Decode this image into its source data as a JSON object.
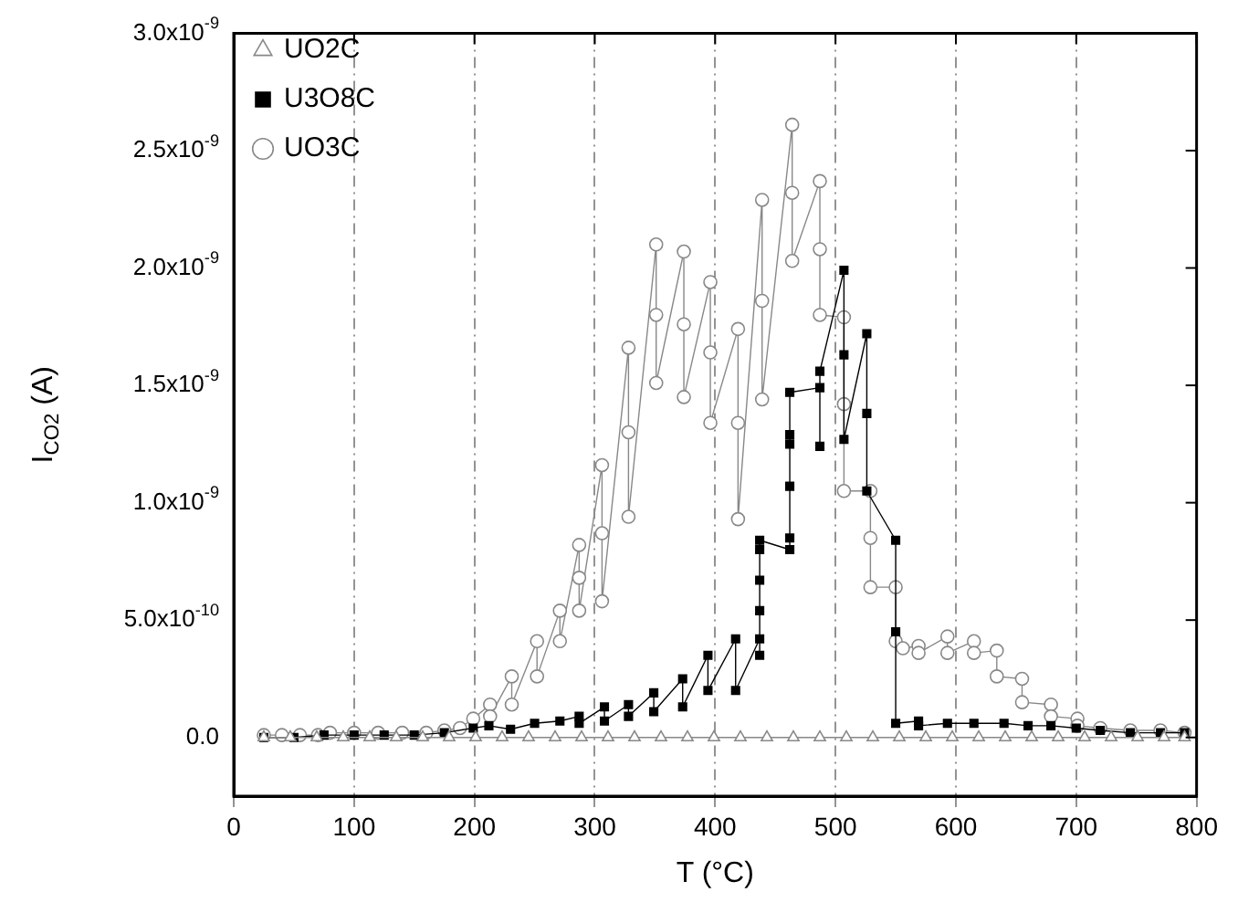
{
  "chart_data": {
    "type": "line",
    "xlabel": "T (°C)",
    "ylabel": "I$_{CO2}$ (A)",
    "xlim": [
      0,
      800
    ],
    "xticks": [
      0,
      100,
      200,
      300,
      400,
      500,
      600,
      700,
      800
    ],
    "ylim": [
      -2.5e-10,
      3e-09
    ],
    "yticks": [
      {
        "value": 0,
        "label": "0.0"
      },
      {
        "value": 5e-10,
        "label": "5.0x10$^{-10}$"
      },
      {
        "value": 1e-09,
        "label": "1.0x10$^{-9}$"
      },
      {
        "value": 1.5e-09,
        "label": "1.5x10$^{-9}$"
      },
      {
        "value": 2e-09,
        "label": "2.0x10$^{-9}$"
      },
      {
        "value": 2.5e-09,
        "label": "2.5x10$^{-9}$"
      },
      {
        "value": 3e-09,
        "label": "3.0x10$^{-9}$"
      }
    ],
    "grid": "x",
    "legend": "top left",
    "series": [
      {
        "name": "UO2C",
        "color": "#888888",
        "marker": "triangle",
        "x": [
          25,
          47,
          69,
          91,
          113,
          135,
          157,
          179,
          201,
          223,
          245,
          267,
          289,
          311,
          333,
          355,
          377,
          399,
          421,
          443,
          465,
          487,
          509,
          531,
          553,
          575,
          597,
          619,
          641,
          663,
          685,
          707,
          729,
          751,
          773,
          790
        ],
        "values": [
          0,
          0,
          0,
          0,
          0,
          0,
          0,
          0,
          0,
          0,
          0,
          0,
          0,
          0,
          0,
          0,
          0,
          0,
          0,
          0,
          0,
          0,
          0,
          0,
          0,
          0,
          0,
          0,
          0,
          0,
          0,
          0,
          0,
          0,
          0,
          0
        ]
      },
      {
        "name": "U3O8C",
        "color": "#000000",
        "marker": "square",
        "x": [
          25,
          50,
          75,
          100,
          125,
          150,
          175,
          199,
          212,
          230,
          250,
          271,
          287,
          287,
          308,
          308,
          328,
          328,
          349,
          349,
          373,
          373,
          394,
          394,
          417,
          417,
          437,
          437,
          437,
          437,
          437,
          437,
          462,
          462,
          462,
          462,
          462,
          462,
          487,
          487,
          487,
          507,
          507,
          507,
          526,
          526,
          526,
          550,
          550,
          550,
          569,
          569,
          593,
          615,
          640,
          660,
          679,
          700,
          720,
          745,
          770,
          790
        ],
        "values": [
          0,
          0,
          1e-11,
          1e-11,
          1e-11,
          1e-11,
          2e-11,
          4e-11,
          5e-11,
          3.5e-11,
          6e-11,
          7e-11,
          9e-11,
          6e-11,
          1.3e-10,
          7e-11,
          1.4e-10,
          9e-11,
          1.9e-10,
          1.1e-10,
          2.5e-10,
          1.3e-10,
          3.5e-10,
          2e-10,
          4.2e-10,
          2e-10,
          4.2e-10,
          3.5e-10,
          5.4e-10,
          6.7e-10,
          8e-10,
          8.4e-10,
          8e-10,
          8.5e-10,
          1.07e-09,
          1.25e-09,
          1.29e-09,
          1.47e-09,
          1.49e-09,
          1.24e-09,
          1.56e-09,
          1.99e-09,
          1.63e-09,
          1.27e-09,
          1.72e-09,
          1.38e-09,
          1.05e-09,
          8.4e-10,
          4.5e-10,
          6e-11,
          7e-11,
          5e-11,
          6e-11,
          6e-11,
          6e-11,
          5e-11,
          5e-11,
          4e-11,
          3e-11,
          2e-11,
          2e-11,
          2e-11
        ]
      },
      {
        "name": "UO3C",
        "color": "#888888",
        "marker": "circle",
        "x": [
          25,
          40,
          55,
          70,
          80,
          100,
          120,
          140,
          160,
          175,
          188,
          199,
          213,
          213,
          231,
          231,
          252,
          252,
          271,
          271,
          287,
          287,
          287,
          306,
          306,
          306,
          328,
          328,
          328,
          351,
          351,
          351,
          374,
          374,
          374,
          396,
          396,
          396,
          419,
          419,
          419,
          439,
          439,
          439,
          464,
          464,
          464,
          487,
          487,
          487,
          507,
          507,
          507,
          529,
          529,
          529,
          550,
          550,
          556,
          569,
          569,
          593,
          593,
          615,
          615,
          634,
          634,
          655,
          655,
          679,
          679,
          701,
          701,
          720,
          745,
          770,
          790
        ],
        "values": [
          1e-11,
          1e-11,
          1e-11,
          1e-11,
          2e-11,
          2e-11,
          2e-11,
          2e-11,
          2e-11,
          3e-11,
          4e-11,
          8e-11,
          1.4e-10,
          9e-11,
          2.6e-10,
          1.4e-10,
          4.1e-10,
          2.6e-10,
          5.4e-10,
          4.1e-10,
          8.2e-10,
          6.8e-10,
          5.4e-10,
          1.16e-09,
          8.7e-10,
          5.8e-10,
          1.66e-09,
          1.3e-09,
          9.4e-10,
          2.1e-09,
          1.8e-09,
          1.51e-09,
          2.07e-09,
          1.76e-09,
          1.45e-09,
          1.94e-09,
          1.64e-09,
          1.34e-09,
          1.74e-09,
          1.34e-09,
          9.3e-10,
          2.29e-09,
          1.86e-09,
          1.44e-09,
          2.61e-09,
          2.32e-09,
          2.03e-09,
          2.37e-09,
          2.08e-09,
          1.8e-09,
          1.79e-09,
          1.42e-09,
          1.05e-09,
          1.05e-09,
          8.5e-10,
          6.4e-10,
          6.4e-10,
          4.1e-10,
          3.8e-10,
          3.9e-10,
          3.6e-10,
          4.3e-10,
          3.6e-10,
          4.1e-10,
          3.6e-10,
          3.7e-10,
          2.6e-10,
          2.5e-10,
          1.5e-10,
          1.4e-10,
          9e-11,
          8e-11,
          5e-11,
          4e-11,
          3e-11,
          3e-11,
          2e-11
        ]
      }
    ]
  }
}
